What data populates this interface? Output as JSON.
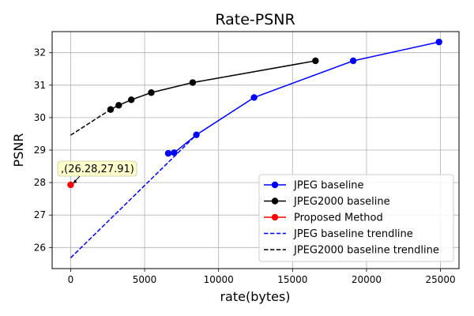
{
  "chart_data": {
    "type": "line",
    "title": "Rate-PSNR",
    "xlabel": "rate(bytes)",
    "ylabel": "PSNR",
    "xlim": [
      -1250,
      26250
    ],
    "ylim": [
      25.35,
      32.65
    ],
    "xticks": [
      0,
      5000,
      10000,
      15000,
      20000,
      25000
    ],
    "xtick_labels": [
      "0",
      "5000",
      "10000",
      "15000",
      "20000",
      "25000"
    ],
    "yticks": [
      26,
      27,
      28,
      29,
      30,
      31,
      32
    ],
    "ytick_labels": [
      "26",
      "27",
      "28",
      "29",
      "30",
      "31",
      "32"
    ],
    "grid": true,
    "legend_position": "lower-right",
    "series": [
      {
        "name": "JPEG baseline",
        "style": "solid-marker",
        "color": "#0000ff",
        "x": [
          6600,
          7000,
          8500,
          12400,
          19100,
          24900
        ],
        "y": [
          28.9,
          28.92,
          29.47,
          30.62,
          31.75,
          32.33
        ]
      },
      {
        "name": "JPEG2000 baseline",
        "style": "solid-marker",
        "color": "#000000",
        "x": [
          2700,
          3250,
          4100,
          5450,
          8250,
          16550
        ],
        "y": [
          30.25,
          30.38,
          30.55,
          30.77,
          31.08,
          31.75
        ]
      },
      {
        "name": "Proposed Method",
        "style": "marker-only",
        "color": "#ff0000",
        "x": [
          0
        ],
        "y": [
          27.93
        ]
      },
      {
        "name": "JPEG baseline trendline",
        "style": "dashed",
        "color": "#0000ff",
        "x": [
          0,
          8500
        ],
        "y": [
          25.68,
          29.47
        ]
      },
      {
        "name": "JPEG2000 baseline trendline",
        "style": "dashed",
        "color": "#000000",
        "x": [
          0,
          2700
        ],
        "y": [
          29.46,
          30.25
        ]
      }
    ],
    "annotation": {
      "text": ",(26.28,27.91)",
      "target_x": 0,
      "target_y": 27.93
    }
  }
}
